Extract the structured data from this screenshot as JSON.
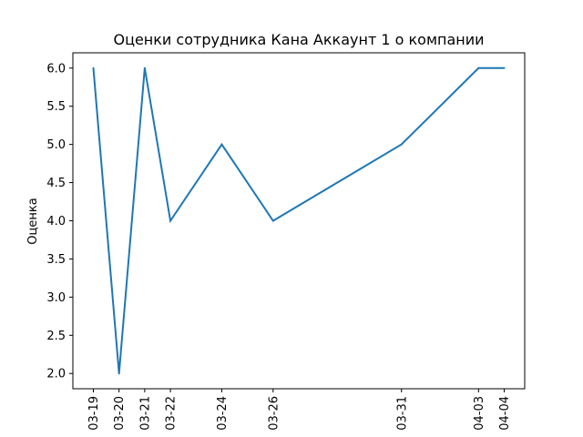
{
  "chart_data": {
    "type": "line",
    "title": "Оценки сотрудника Кана Аккаунт 1 о компании",
    "xlabel": "",
    "ylabel": "Оценка",
    "x": [
      "03-19",
      "03-20",
      "03-21",
      "03-22",
      "03-24",
      "03-26",
      "03-31",
      "04-03",
      "04-04"
    ],
    "x_dates": [
      "2024-03-19",
      "2024-03-20",
      "2024-03-21",
      "2024-03-22",
      "2024-03-24",
      "2024-03-26",
      "2024-03-31",
      "2024-04-03",
      "2024-04-04"
    ],
    "series": [
      {
        "color": "#1f77b4",
        "values": [
          6.0,
          2.0,
          6.0,
          4.0,
          5.0,
          4.0,
          5.0,
          6.0,
          6.0
        ]
      }
    ],
    "ylim": [
      1.8,
      6.2
    ],
    "y_ticks": [
      2.0,
      2.5,
      3.0,
      3.5,
      4.0,
      4.5,
      5.0,
      5.5,
      6.0
    ],
    "y_tick_labels": [
      "2.0",
      "2.5",
      "3.0",
      "3.5",
      "4.0",
      "4.5",
      "5.0",
      "5.5",
      "6.0"
    ],
    "grid": false,
    "legend": "none"
  }
}
